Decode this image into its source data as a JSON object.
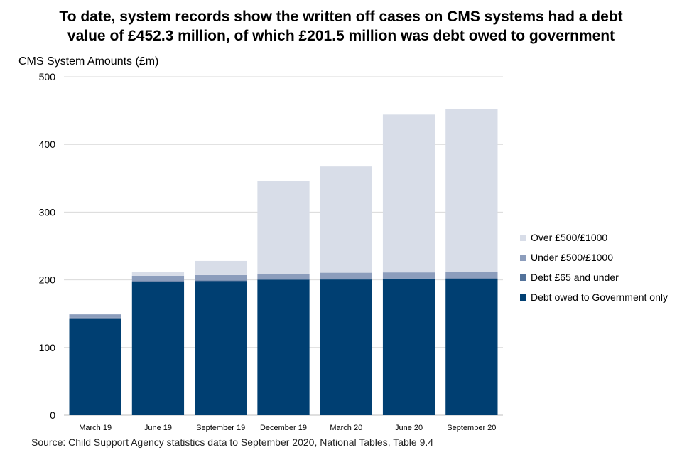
{
  "title_lines": [
    "To date, system records show the written off cases on CMS systems had a debt",
    "value of £452.3 million, of which £201.5 million was debt owed to government"
  ],
  "source": "Source: Child Support Agency statistics data to September 2020, National Tables, Table 9.4",
  "chart_data": {
    "type": "bar",
    "stacked": true,
    "title": "To date, system records show the written off cases on CMS systems had a debt value of £452.3 million, of which £201.5 million was debt owed to government",
    "ylabel": "CMS System Amounts (£m)",
    "xlabel": "",
    "ylim": [
      0,
      500
    ],
    "yticks": [
      0,
      100,
      200,
      300,
      400,
      500
    ],
    "grid": true,
    "legend_position": "right",
    "categories": [
      "March 19",
      "June 19",
      "September 19",
      "December 19",
      "March 20",
      "June 20",
      "September 20"
    ],
    "series": [
      {
        "name": "Debt owed to Government only",
        "color": "#003f72",
        "values": [
          143,
          197,
          198,
          200,
          200.5,
          201,
          201.5
        ]
      },
      {
        "name": "Debt £65 and under",
        "color": "#53729a",
        "values": [
          1,
          1,
          1,
          1,
          1,
          1,
          1
        ]
      },
      {
        "name": "Under £500/£1000",
        "color": "#8c9dbc",
        "values": [
          5,
          8,
          8,
          8,
          9,
          9,
          9
        ]
      },
      {
        "name": "Over £500/£1000",
        "color": "#d8dde8",
        "values": [
          0,
          6,
          21,
          137,
          157,
          233,
          240.8
        ]
      }
    ]
  }
}
